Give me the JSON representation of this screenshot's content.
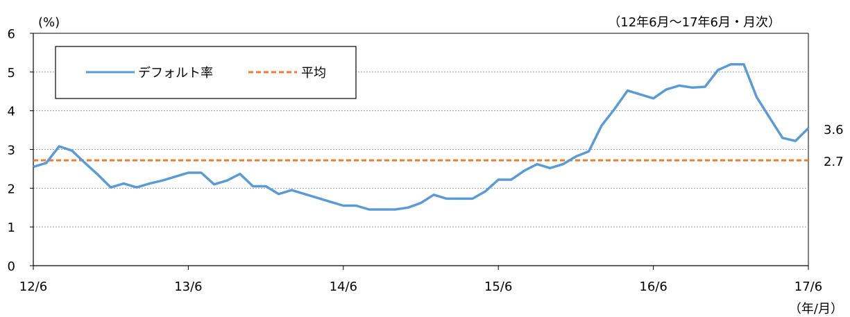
{
  "chart_data": {
    "type": "line",
    "ylabel": "(%)",
    "period_note": "（12年6月～17年6月・月次）",
    "xunit": "（年/月）",
    "x_ticks": [
      "12/6",
      "13/6",
      "14/6",
      "15/6",
      "16/6",
      "17/6"
    ],
    "y_ticks": [
      "0",
      "1",
      "2",
      "3",
      "4",
      "5",
      "6"
    ],
    "ylim": [
      0,
      6
    ],
    "grid": "horizontal-dotted",
    "legend_position": "top-left",
    "series": [
      {
        "name": "デフォルト率",
        "color": "#5b9bd5",
        "style": "solid",
        "end_label": "3.6",
        "values": [
          2.55,
          2.65,
          3.08,
          2.97,
          2.65,
          2.35,
          2.02,
          2.12,
          2.02,
          2.12,
          2.2,
          2.3,
          2.4,
          2.4,
          2.1,
          2.2,
          2.37,
          2.05,
          2.05,
          1.85,
          1.95,
          1.85,
          1.75,
          1.65,
          1.55,
          1.55,
          1.45,
          1.45,
          1.45,
          1.5,
          1.62,
          1.83,
          1.73,
          1.73,
          1.73,
          1.92,
          2.22,
          2.22,
          2.45,
          2.62,
          2.52,
          2.62,
          2.82,
          2.95,
          3.62,
          4.05,
          4.52,
          4.42,
          4.32,
          4.55,
          4.65,
          4.6,
          4.62,
          5.05,
          5.2,
          5.2,
          4.35,
          3.82,
          3.3,
          3.22,
          3.55
        ]
      },
      {
        "name": "平均",
        "color": "#ed7d31",
        "style": "dashed",
        "end_label": "2.7",
        "values": [
          2.72
        ]
      }
    ]
  }
}
